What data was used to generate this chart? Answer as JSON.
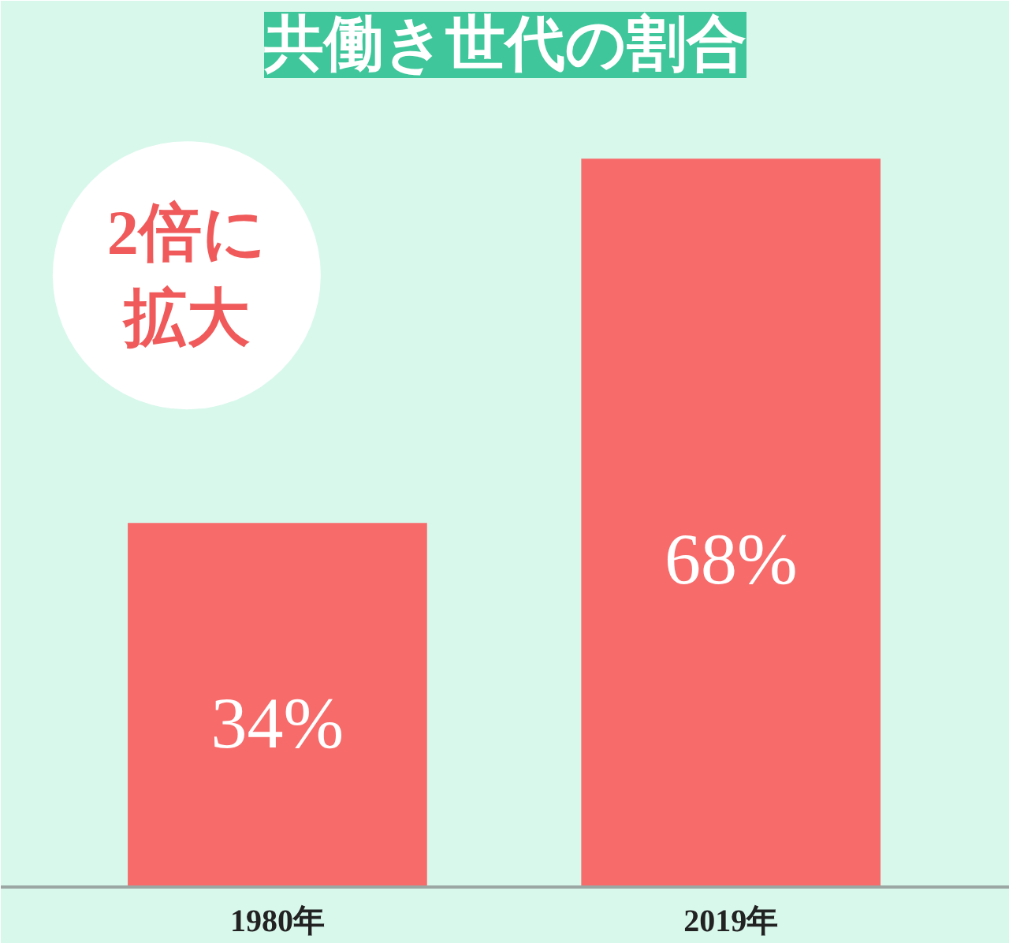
{
  "chart_data": {
    "type": "bar",
    "title": "共働き世代の割合",
    "categories": [
      "1980年",
      "2019年"
    ],
    "values": [
      34,
      68
    ],
    "value_labels": [
      "34%",
      "68%"
    ],
    "color": "#f76b6b",
    "annotations": [
      "2倍に拡大"
    ]
  }
}
